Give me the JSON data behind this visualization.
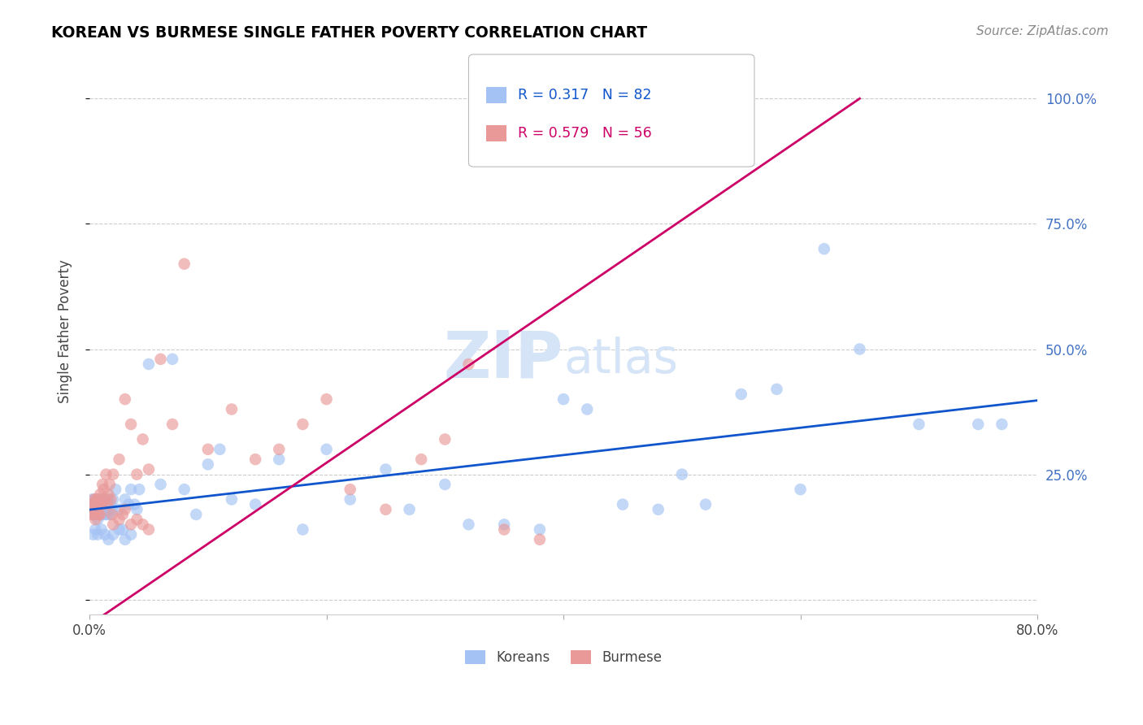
{
  "title": "KOREAN VS BURMESE SINGLE FATHER POVERTY CORRELATION CHART",
  "source": "Source: ZipAtlas.com",
  "ylabel": "Single Father Poverty",
  "xlim": [
    0.0,
    0.8
  ],
  "ylim": [
    -0.03,
    1.1
  ],
  "korean_R": 0.317,
  "korean_N": 82,
  "burmese_R": 0.579,
  "burmese_N": 56,
  "korean_color": "#a4c2f4",
  "burmese_color": "#ea9999",
  "korean_line_color": "#1155cc",
  "burmese_line_color": "#cc0066",
  "watermark_color": "#d6e4f7",
  "background_color": "#ffffff",
  "title_color": "#000000",
  "source_color": "#888888",
  "right_tick_color": "#4472c4",
  "legend_label1": "Koreans",
  "legend_label2": "Burmese",
  "korean_x": [
    0.002,
    0.003,
    0.003,
    0.004,
    0.004,
    0.005,
    0.005,
    0.006,
    0.006,
    0.007,
    0.007,
    0.008,
    0.008,
    0.009,
    0.009,
    0.01,
    0.01,
    0.011,
    0.011,
    0.012,
    0.012,
    0.013,
    0.014,
    0.015,
    0.015,
    0.016,
    0.017,
    0.018,
    0.019,
    0.02,
    0.022,
    0.025,
    0.028,
    0.03,
    0.033,
    0.035,
    0.038,
    0.04,
    0.042,
    0.05,
    0.06,
    0.07,
    0.08,
    0.09,
    0.1,
    0.11,
    0.12,
    0.14,
    0.16,
    0.18,
    0.2,
    0.22,
    0.25,
    0.27,
    0.3,
    0.32,
    0.35,
    0.38,
    0.4,
    0.42,
    0.45,
    0.48,
    0.5,
    0.52,
    0.55,
    0.58,
    0.6,
    0.62,
    0.65,
    0.7,
    0.75,
    0.77,
    0.003,
    0.005,
    0.007,
    0.01,
    0.013,
    0.016,
    0.02,
    0.025,
    0.03,
    0.035
  ],
  "korean_y": [
    0.2,
    0.19,
    0.17,
    0.18,
    0.2,
    0.17,
    0.19,
    0.18,
    0.2,
    0.16,
    0.19,
    0.18,
    0.2,
    0.17,
    0.19,
    0.18,
    0.2,
    0.17,
    0.19,
    0.18,
    0.2,
    0.17,
    0.18,
    0.19,
    0.17,
    0.2,
    0.17,
    0.19,
    0.18,
    0.2,
    0.22,
    0.18,
    0.14,
    0.2,
    0.19,
    0.22,
    0.19,
    0.18,
    0.22,
    0.47,
    0.23,
    0.48,
    0.22,
    0.17,
    0.27,
    0.3,
    0.2,
    0.19,
    0.28,
    0.14,
    0.3,
    0.2,
    0.26,
    0.18,
    0.23,
    0.15,
    0.15,
    0.14,
    0.4,
    0.38,
    0.19,
    0.18,
    0.25,
    0.19,
    0.41,
    0.42,
    0.22,
    0.7,
    0.5,
    0.35,
    0.35,
    0.35,
    0.13,
    0.14,
    0.13,
    0.14,
    0.13,
    0.12,
    0.13,
    0.14,
    0.12,
    0.13
  ],
  "burmese_x": [
    0.001,
    0.002,
    0.003,
    0.004,
    0.004,
    0.005,
    0.005,
    0.006,
    0.006,
    0.007,
    0.007,
    0.008,
    0.008,
    0.009,
    0.009,
    0.01,
    0.011,
    0.012,
    0.013,
    0.014,
    0.015,
    0.016,
    0.017,
    0.018,
    0.019,
    0.02,
    0.025,
    0.03,
    0.035,
    0.04,
    0.045,
    0.05,
    0.06,
    0.07,
    0.08,
    0.1,
    0.12,
    0.14,
    0.16,
    0.18,
    0.2,
    0.22,
    0.25,
    0.28,
    0.3,
    0.32,
    0.35,
    0.38,
    0.02,
    0.025,
    0.028,
    0.03,
    0.035,
    0.04,
    0.045,
    0.05
  ],
  "burmese_y": [
    0.19,
    0.17,
    0.18,
    0.2,
    0.17,
    0.19,
    0.16,
    0.2,
    0.18,
    0.19,
    0.2,
    0.17,
    0.19,
    0.21,
    0.17,
    0.19,
    0.23,
    0.22,
    0.2,
    0.25,
    0.19,
    0.21,
    0.23,
    0.2,
    0.17,
    0.25,
    0.28,
    0.4,
    0.35,
    0.25,
    0.32,
    0.26,
    0.48,
    0.35,
    0.67,
    0.3,
    0.38,
    0.28,
    0.3,
    0.35,
    0.4,
    0.22,
    0.18,
    0.28,
    0.32,
    0.47,
    0.14,
    0.12,
    0.15,
    0.16,
    0.17,
    0.18,
    0.15,
    0.16,
    0.15,
    0.14
  ]
}
